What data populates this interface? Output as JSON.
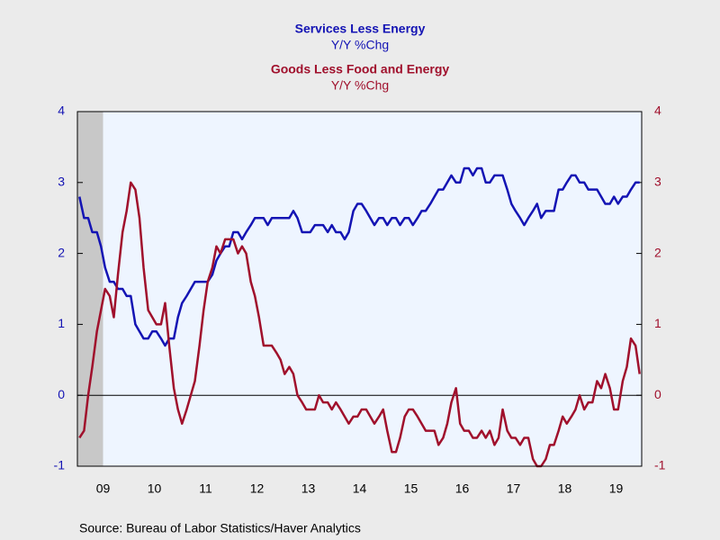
{
  "chart_data": {
    "type": "line",
    "source": "Source:  Bureau of Labor Statistics/Haver Analytics",
    "x": [
      2009.04,
      2009.13,
      2009.21,
      2009.29,
      2009.38,
      2009.46,
      2009.54,
      2009.63,
      2009.71,
      2009.79,
      2009.88,
      2009.96,
      2010.04,
      2010.13,
      2010.21,
      2010.29,
      2010.38,
      2010.46,
      2010.54,
      2010.63,
      2010.71,
      2010.79,
      2010.88,
      2010.96,
      2011.04,
      2011.13,
      2011.21,
      2011.29,
      2011.38,
      2011.46,
      2011.54,
      2011.63,
      2011.71,
      2011.79,
      2011.88,
      2011.96,
      2012.04,
      2012.13,
      2012.21,
      2012.29,
      2012.38,
      2012.46,
      2012.54,
      2012.63,
      2012.71,
      2012.79,
      2012.88,
      2012.96,
      2013.04,
      2013.13,
      2013.21,
      2013.29,
      2013.38,
      2013.46,
      2013.54,
      2013.63,
      2013.71,
      2013.79,
      2013.88,
      2013.96,
      2014.04,
      2014.13,
      2014.21,
      2014.29,
      2014.38,
      2014.46,
      2014.54,
      2014.63,
      2014.71,
      2014.79,
      2014.88,
      2014.96,
      2015.04,
      2015.13,
      2015.21,
      2015.29,
      2015.38,
      2015.46,
      2015.54,
      2015.63,
      2015.71,
      2015.79,
      2015.88,
      2015.96,
      2016.04,
      2016.13,
      2016.21,
      2016.29,
      2016.38,
      2016.46,
      2016.54,
      2016.63,
      2016.71,
      2016.79,
      2016.88,
      2016.96,
      2017.04,
      2017.13,
      2017.21,
      2017.29,
      2017.38,
      2017.46,
      2017.54,
      2017.63,
      2017.71,
      2017.79,
      2017.88,
      2017.96,
      2018.04,
      2018.13,
      2018.21,
      2018.29,
      2018.38,
      2018.46,
      2018.54,
      2018.63,
      2018.71,
      2018.79,
      2018.88,
      2018.96,
      2019.04,
      2019.13,
      2019.21,
      2019.29,
      2019.38,
      2019.46,
      2019.54,
      2019.63,
      2019.71,
      2019.79,
      2019.88,
      2019.96
    ],
    "series": [
      {
        "name": "Services Less Energy",
        "unit": "Y/Y %Chg",
        "color": "#1414b4",
        "axis": "y",
        "values": [
          2.8,
          2.5,
          2.5,
          2.3,
          2.3,
          2.1,
          1.8,
          1.6,
          1.6,
          1.5,
          1.5,
          1.4,
          1.4,
          1.0,
          0.9,
          0.8,
          0.8,
          0.9,
          0.9,
          0.8,
          0.7,
          0.8,
          0.8,
          1.1,
          1.3,
          1.4,
          1.5,
          1.6,
          1.6,
          1.6,
          1.6,
          1.7,
          1.9,
          2.0,
          2.1,
          2.1,
          2.3,
          2.3,
          2.2,
          2.3,
          2.4,
          2.5,
          2.5,
          2.5,
          2.4,
          2.5,
          2.5,
          2.5,
          2.5,
          2.5,
          2.6,
          2.5,
          2.3,
          2.3,
          2.3,
          2.4,
          2.4,
          2.4,
          2.3,
          2.4,
          2.3,
          2.3,
          2.2,
          2.3,
          2.6,
          2.7,
          2.7,
          2.6,
          2.5,
          2.4,
          2.5,
          2.5,
          2.4,
          2.5,
          2.5,
          2.4,
          2.5,
          2.5,
          2.4,
          2.5,
          2.6,
          2.6,
          2.7,
          2.8,
          2.9,
          2.9,
          3.0,
          3.1,
          3.0,
          3.0,
          3.2,
          3.2,
          3.1,
          3.2,
          3.2,
          3.0,
          3.0,
          3.1,
          3.1,
          3.1,
          2.9,
          2.7,
          2.6,
          2.5,
          2.4,
          2.5,
          2.6,
          2.7,
          2.5,
          2.6,
          2.6,
          2.6,
          2.9,
          2.9,
          3.0,
          3.1,
          3.1,
          3.0,
          3.0,
          2.9,
          2.9,
          2.9,
          2.8,
          2.7,
          2.7,
          2.8,
          2.7,
          2.8,
          2.8,
          2.9,
          3.0,
          3.0
        ]
      },
      {
        "name": "Goods Less Food and Energy",
        "unit": "Y/Y %Chg",
        "color": "#a0102c",
        "axis": "y2",
        "values": [
          -0.6,
          -0.5,
          0.0,
          0.4,
          0.9,
          1.2,
          1.5,
          1.4,
          1.1,
          1.7,
          2.3,
          2.6,
          3.0,
          2.9,
          2.5,
          1.8,
          1.2,
          1.1,
          1.0,
          1.0,
          1.3,
          0.7,
          0.1,
          -0.2,
          -0.4,
          -0.2,
          0.0,
          0.2,
          0.7,
          1.2,
          1.6,
          1.8,
          2.1,
          2.0,
          2.2,
          2.2,
          2.2,
          2.0,
          2.1,
          2.0,
          1.6,
          1.4,
          1.1,
          0.7,
          0.7,
          0.7,
          0.6,
          0.5,
          0.3,
          0.4,
          0.3,
          0.0,
          -0.1,
          -0.2,
          -0.2,
          -0.2,
          0.0,
          -0.1,
          -0.1,
          -0.2,
          -0.1,
          -0.2,
          -0.3,
          -0.4,
          -0.3,
          -0.3,
          -0.2,
          -0.2,
          -0.3,
          -0.4,
          -0.3,
          -0.2,
          -0.5,
          -0.8,
          -0.8,
          -0.6,
          -0.3,
          -0.2,
          -0.2,
          -0.3,
          -0.4,
          -0.5,
          -0.5,
          -0.5,
          -0.7,
          -0.6,
          -0.4,
          -0.1,
          0.1,
          -0.4,
          -0.5,
          -0.5,
          -0.6,
          -0.6,
          -0.5,
          -0.6,
          -0.5,
          -0.7,
          -0.6,
          -0.2,
          -0.5,
          -0.6,
          -0.6,
          -0.7,
          -0.6,
          -0.6,
          -0.9,
          -1.0,
          -1.0,
          -0.9,
          -0.7,
          -0.7,
          -0.5,
          -0.3,
          -0.4,
          -0.3,
          -0.2,
          0.0,
          -0.2,
          -0.1,
          -0.1,
          0.2,
          0.1,
          0.3,
          0.1,
          -0.2,
          -0.2,
          0.2,
          0.4,
          0.8,
          0.7,
          0.3
        ]
      }
    ],
    "xlim": [
      2009,
      2020
    ],
    "xticks": [
      {
        "value": 2009.5,
        "label": "09"
      },
      {
        "value": 2010.5,
        "label": "10"
      },
      {
        "value": 2011.5,
        "label": "11"
      },
      {
        "value": 2012.5,
        "label": "12"
      },
      {
        "value": 2013.5,
        "label": "13"
      },
      {
        "value": 2014.5,
        "label": "14"
      },
      {
        "value": 2015.5,
        "label": "15"
      },
      {
        "value": 2016.5,
        "label": "16"
      },
      {
        "value": 2017.5,
        "label": "17"
      },
      {
        "value": 2018.5,
        "label": "18"
      },
      {
        "value": 2019.5,
        "label": "19"
      }
    ],
    "ylim": [
      -1,
      4
    ],
    "yticks": [
      -1,
      0,
      1,
      2,
      3,
      4
    ],
    "y2lim": [
      -1,
      4
    ],
    "y2ticks": [
      -1,
      0,
      1,
      2,
      3,
      4
    ],
    "reference_line": 0,
    "shaded_region": [
      2009,
      2009.5
    ]
  }
}
